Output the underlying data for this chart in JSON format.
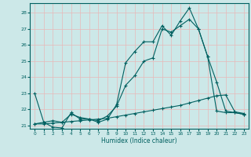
{
  "xlabel": "Humidex (Indice chaleur)",
  "xlim": [
    -0.5,
    23.5
  ],
  "ylim": [
    20.8,
    28.6
  ],
  "yticks": [
    21,
    22,
    23,
    24,
    25,
    26,
    27,
    28
  ],
  "xticks": [
    0,
    1,
    2,
    3,
    4,
    5,
    6,
    7,
    8,
    9,
    10,
    11,
    12,
    13,
    14,
    15,
    16,
    17,
    18,
    19,
    20,
    21,
    22,
    23
  ],
  "bg_color": "#cce8e8",
  "line_color": "#006060",
  "grid_color": "#e8b8b8",
  "series1_x": [
    0,
    1,
    2,
    3,
    4,
    5,
    6,
    7,
    8,
    9,
    10,
    11,
    12,
    13,
    14,
    15,
    16,
    17,
    18,
    19,
    20,
    21,
    22,
    23
  ],
  "series1_y": [
    23.0,
    21.2,
    20.9,
    20.85,
    21.8,
    21.4,
    21.4,
    21.2,
    21.4,
    22.3,
    24.9,
    25.6,
    26.2,
    26.2,
    27.2,
    26.6,
    27.5,
    28.3,
    27.0,
    25.3,
    23.7,
    21.9,
    21.8,
    21.7
  ],
  "series2_x": [
    0,
    1,
    2,
    3,
    4,
    5,
    6,
    7,
    8,
    9,
    10,
    11,
    12,
    13,
    14,
    15,
    16,
    17,
    18,
    19,
    20,
    21,
    22,
    23
  ],
  "series2_y": [
    21.1,
    21.1,
    21.15,
    21.2,
    21.25,
    21.3,
    21.35,
    21.4,
    21.45,
    21.55,
    21.65,
    21.75,
    21.85,
    21.95,
    22.05,
    22.15,
    22.25,
    22.4,
    22.55,
    22.7,
    22.85,
    22.9,
    21.85,
    21.75
  ],
  "series3_x": [
    0,
    1,
    2,
    3,
    4,
    5,
    6,
    7,
    8,
    9,
    10,
    11,
    12,
    13,
    14,
    15,
    16,
    17,
    18,
    19,
    20,
    21,
    22,
    23
  ],
  "series3_y": [
    21.1,
    21.2,
    21.3,
    21.2,
    21.7,
    21.5,
    21.4,
    21.3,
    21.6,
    22.2,
    23.5,
    24.1,
    25.0,
    25.2,
    27.0,
    26.8,
    27.2,
    27.6,
    27.0,
    25.3,
    21.9,
    21.8,
    21.8,
    21.7
  ]
}
